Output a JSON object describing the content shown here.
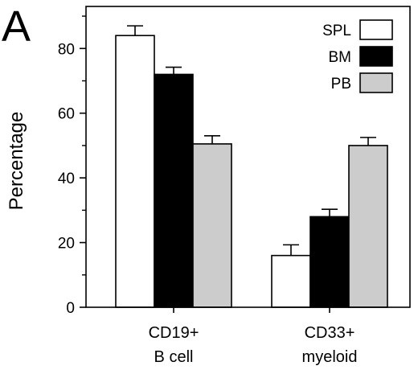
{
  "panel_label": "A",
  "chart_data": {
    "type": "bar",
    "title": "",
    "xlabel": "",
    "ylabel": "Percentage",
    "ylim": [
      0,
      93
    ],
    "yticks": [
      0,
      20,
      40,
      60,
      80
    ],
    "minor_yticks": [
      10,
      30,
      50,
      70,
      90
    ],
    "categories": [
      {
        "lines": [
          "CD19+",
          "B cell"
        ]
      },
      {
        "lines": [
          "CD33+",
          "myeloid"
        ]
      }
    ],
    "series": [
      {
        "name": "SPL",
        "color": "#ffffff",
        "values": [
          84,
          16
        ],
        "errors": [
          3,
          3.3
        ]
      },
      {
        "name": "BM",
        "color": "#000000",
        "values": [
          72,
          28
        ],
        "errors": [
          2.2,
          2.3
        ]
      },
      {
        "name": "PB",
        "color": "#cccccc",
        "values": [
          50.5,
          50
        ],
        "errors": [
          2.5,
          2.5
        ]
      }
    ],
    "legend_position": "top-right",
    "grid": false
  }
}
